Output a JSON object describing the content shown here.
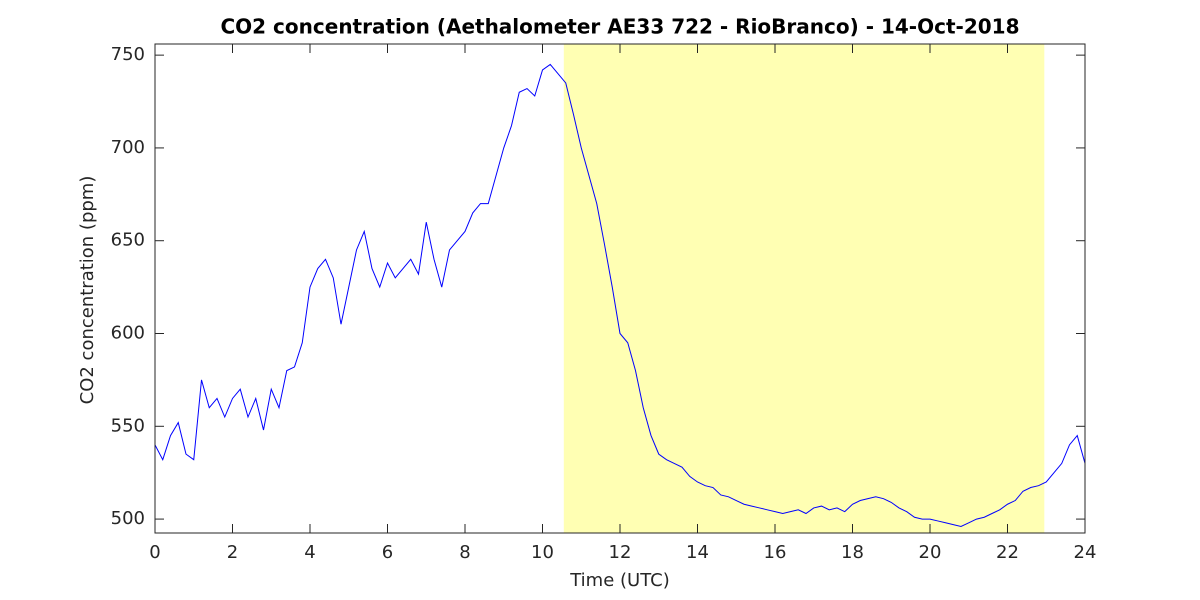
{
  "chart_data": {
    "type": "line",
    "title": "CO2 concentration (Aethalometer AE33 722 - RioBranco) - 14-Oct-2018",
    "xlabel": "Time (UTC)",
    "ylabel": "CO2 concentration (ppm)",
    "xlim": [
      0,
      24
    ],
    "xticks": [
      0,
      2,
      4,
      6,
      8,
      10,
      12,
      14,
      16,
      18,
      20,
      22,
      24
    ],
    "ylim": [
      492.5,
      756
    ],
    "yticks": [
      500,
      550,
      600,
      650,
      700,
      750
    ],
    "shaded_region": [
      10.55,
      22.95
    ],
    "shade_color": "#ffffb3",
    "x": [
      0,
      0.2,
      0.4,
      0.6,
      0.8,
      1,
      1.2,
      1.4,
      1.6,
      1.8,
      2,
      2.2,
      2.4,
      2.6,
      2.8,
      3,
      3.2,
      3.4,
      3.6,
      3.8,
      4,
      4.2,
      4.4,
      4.6,
      4.8,
      5,
      5.2,
      5.4,
      5.6,
      5.8,
      6,
      6.2,
      6.4,
      6.6,
      6.8,
      7,
      7.2,
      7.4,
      7.6,
      7.8,
      8,
      8.2,
      8.4,
      8.6,
      8.8,
      9,
      9.2,
      9.4,
      9.6,
      9.8,
      10,
      10.2,
      10.4,
      10.6,
      10.8,
      11,
      11.2,
      11.4,
      11.6,
      11.8,
      12,
      12.2,
      12.4,
      12.6,
      12.8,
      13,
      13.2,
      13.4,
      13.6,
      13.8,
      14,
      14.2,
      14.4,
      14.6,
      14.8,
      15,
      15.2,
      15.4,
      15.6,
      15.8,
      16,
      16.2,
      16.4,
      16.6,
      16.8,
      17,
      17.2,
      17.4,
      17.6,
      17.8,
      18,
      18.2,
      18.4,
      18.6,
      18.8,
      19,
      19.2,
      19.4,
      19.6,
      19.8,
      20,
      20.2,
      20.4,
      20.6,
      20.8,
      21,
      21.2,
      21.4,
      21.6,
      21.8,
      22,
      22.2,
      22.4,
      22.6,
      22.8,
      23,
      23.2,
      23.4,
      23.6,
      23.8,
      24
    ],
    "series": [
      {
        "color": "#0000ff",
        "values": [
          540,
          532,
          545,
          552,
          535,
          532,
          575,
          560,
          565,
          555,
          565,
          570,
          555,
          565,
          548,
          570,
          560,
          580,
          582,
          595,
          625,
          635,
          640,
          630,
          605,
          625,
          645,
          655,
          635,
          625,
          638,
          630,
          635,
          640,
          632,
          660,
          640,
          625,
          645,
          650,
          655,
          665,
          670,
          670,
          685,
          700,
          712,
          730,
          732,
          728,
          742,
          745,
          740,
          735,
          718,
          700,
          685,
          670,
          648,
          625,
          600,
          595,
          580,
          560,
          545,
          535,
          532,
          530,
          528,
          523,
          520,
          518,
          517,
          513,
          512,
          510,
          508,
          507,
          506,
          505,
          504,
          503,
          504,
          505,
          503,
          506,
          507,
          505,
          506,
          504,
          508,
          510,
          511,
          512,
          511,
          509,
          506,
          504,
          501,
          500,
          500,
          499,
          498,
          497,
          496,
          498,
          500,
          501,
          503,
          505,
          508,
          510,
          515,
          517,
          518,
          520,
          525,
          530,
          540,
          545,
          530
        ]
      }
    ]
  }
}
